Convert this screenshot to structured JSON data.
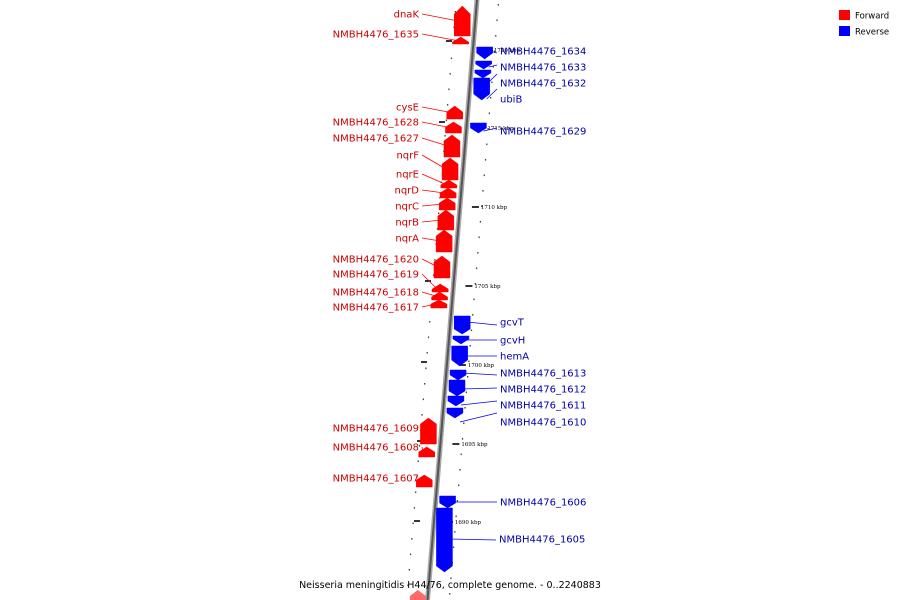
{
  "legend": {
    "forward": {
      "label": "Forward",
      "color": "#ff0000"
    },
    "reverse": {
      "label": "Reverse",
      "color": "#0000ff"
    }
  },
  "caption": "Neisseria meningitidis H44/76, complete genome. - 0..2240883",
  "colors": {
    "forward_label": "#cc0000",
    "reverse_label": "#0000aa"
  },
  "ticks": [
    "1720 kbp",
    "1715 kbp",
    "1710 kbp",
    "1705 kbp",
    "1700 kbp",
    "1695 kbp",
    "1690 kbp"
  ],
  "genes": [
    {
      "name": "dnaK",
      "strand": "forward"
    },
    {
      "name": "NMBH4476_1635",
      "strand": "forward"
    },
    {
      "name": "NMBH4476_1634",
      "strand": "reverse"
    },
    {
      "name": "NMBH4476_1633",
      "strand": "reverse"
    },
    {
      "name": "NMBH4476_1632",
      "strand": "reverse"
    },
    {
      "name": "ubiB",
      "strand": "reverse"
    },
    {
      "name": "cysE",
      "strand": "forward"
    },
    {
      "name": "NMBH4476_1628",
      "strand": "forward"
    },
    {
      "name": "NMBH4476_1629",
      "strand": "reverse"
    },
    {
      "name": "NMBH4476_1627",
      "strand": "forward"
    },
    {
      "name": "nqrF",
      "strand": "forward"
    },
    {
      "name": "nqrE",
      "strand": "forward"
    },
    {
      "name": "nqrD",
      "strand": "forward"
    },
    {
      "name": "nqrC",
      "strand": "forward"
    },
    {
      "name": "nqrB",
      "strand": "forward"
    },
    {
      "name": "nqrA",
      "strand": "forward"
    },
    {
      "name": "NMBH4476_1620",
      "strand": "forward"
    },
    {
      "name": "NMBH4476_1619",
      "strand": "forward"
    },
    {
      "name": "NMBH4476_1618",
      "strand": "forward"
    },
    {
      "name": "NMBH4476_1617",
      "strand": "forward"
    },
    {
      "name": "gcvT",
      "strand": "reverse"
    },
    {
      "name": "gcvH",
      "strand": "reverse"
    },
    {
      "name": "hemA",
      "strand": "reverse"
    },
    {
      "name": "NMBH4476_1613",
      "strand": "reverse"
    },
    {
      "name": "NMBH4476_1612",
      "strand": "reverse"
    },
    {
      "name": "NMBH4476_1611",
      "strand": "reverse"
    },
    {
      "name": "NMBH4476_1610",
      "strand": "reverse"
    },
    {
      "name": "NMBH4476_1609",
      "strand": "forward"
    },
    {
      "name": "NMBH4476_1608",
      "strand": "forward"
    },
    {
      "name": "NMBH4476_1607",
      "strand": "forward"
    },
    {
      "name": "NMBH4476_1606",
      "strand": "reverse"
    },
    {
      "name": "NMBH4476_1605",
      "strand": "reverse"
    }
  ]
}
